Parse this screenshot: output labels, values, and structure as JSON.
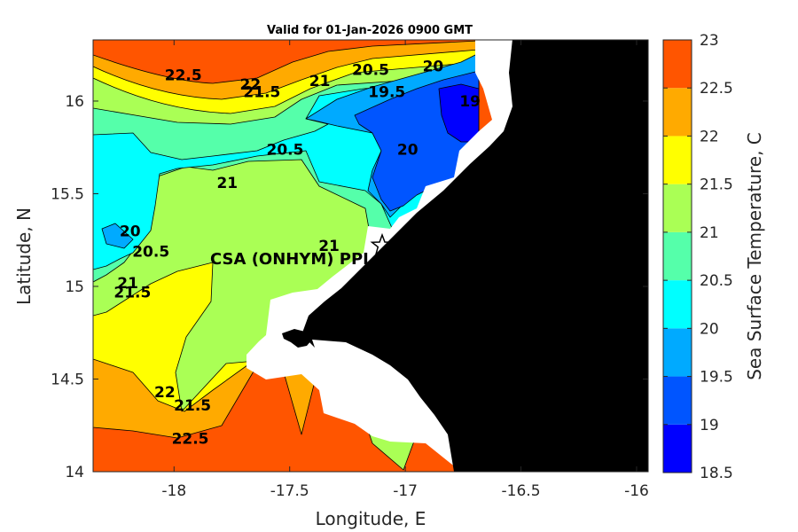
{
  "title": "Valid for 01-Jan-2026 0900 GMT",
  "map": {
    "xlabel": "Longitude, E",
    "ylabel": "Latitude, N",
    "xlim": [
      -18.35,
      -15.95
    ],
    "ylim": [
      14.0,
      16.33
    ],
    "xticks": [
      -18,
      -17.5,
      -17,
      -16.5,
      -16
    ],
    "yticks": [
      14,
      14.5,
      15,
      15.5,
      16
    ],
    "xtick_labels": [
      "-18",
      "-17.5",
      "-17",
      "-16.5",
      "-16"
    ],
    "ytick_labels": [
      "14",
      "14.5",
      "15",
      "15.5",
      "16"
    ],
    "site_label": "CSA (ONHYM) PPL EB",
    "site_location": {
      "lon": -17.1,
      "lat": 15.22
    },
    "site_marker": "star-icon"
  },
  "colorbar": {
    "label": "Sea Surface Temperature, C",
    "levels": [
      18.5,
      19,
      19.5,
      20,
      20.5,
      21,
      21.5,
      22,
      22.5,
      23
    ],
    "level_labels": [
      "18.5",
      "19",
      "19.5",
      "20",
      "20.5",
      "21",
      "21.5",
      "22",
      "22.5",
      "23"
    ],
    "colors": [
      "#0000ff",
      "#0055ff",
      "#00aaff",
      "#00ffff",
      "#55ffaa",
      "#aaff55",
      "#ffff00",
      "#ffaa00",
      "#ff5500"
    ]
  },
  "chart_data": {
    "type": "heatmap",
    "variable": "Sea Surface Temperature",
    "contour_labels": [
      {
        "text": "22.5",
        "lon": -17.96,
        "lat": 16.14
      },
      {
        "text": "22",
        "lon": -17.67,
        "lat": 16.09
      },
      {
        "text": "21.5",
        "lon": -17.62,
        "lat": 16.05
      },
      {
        "text": "21",
        "lon": -17.37,
        "lat": 16.11
      },
      {
        "text": "20.5",
        "lon": -17.15,
        "lat": 16.17
      },
      {
        "text": "20",
        "lon": -16.88,
        "lat": 16.19
      },
      {
        "text": "19.5",
        "lon": -17.08,
        "lat": 16.05
      },
      {
        "text": "19",
        "lon": -16.72,
        "lat": 16.0
      },
      {
        "text": "20.5",
        "lon": -17.52,
        "lat": 15.74
      },
      {
        "text": "20",
        "lon": -16.99,
        "lat": 15.74
      },
      {
        "text": "21",
        "lon": -17.77,
        "lat": 15.56
      },
      {
        "text": "20",
        "lon": -18.19,
        "lat": 15.3
      },
      {
        "text": "20.5",
        "lon": -18.1,
        "lat": 15.19
      },
      {
        "text": "21",
        "lon": -17.33,
        "lat": 15.22
      },
      {
        "text": "21",
        "lon": -18.2,
        "lat": 15.02
      },
      {
        "text": "21.5",
        "lon": -18.18,
        "lat": 14.97
      },
      {
        "text": "22",
        "lon": -18.04,
        "lat": 14.43
      },
      {
        "text": "21.5",
        "lon": -17.92,
        "lat": 14.36
      },
      {
        "text": "22.5",
        "lon": -17.93,
        "lat": 14.18
      }
    ]
  }
}
